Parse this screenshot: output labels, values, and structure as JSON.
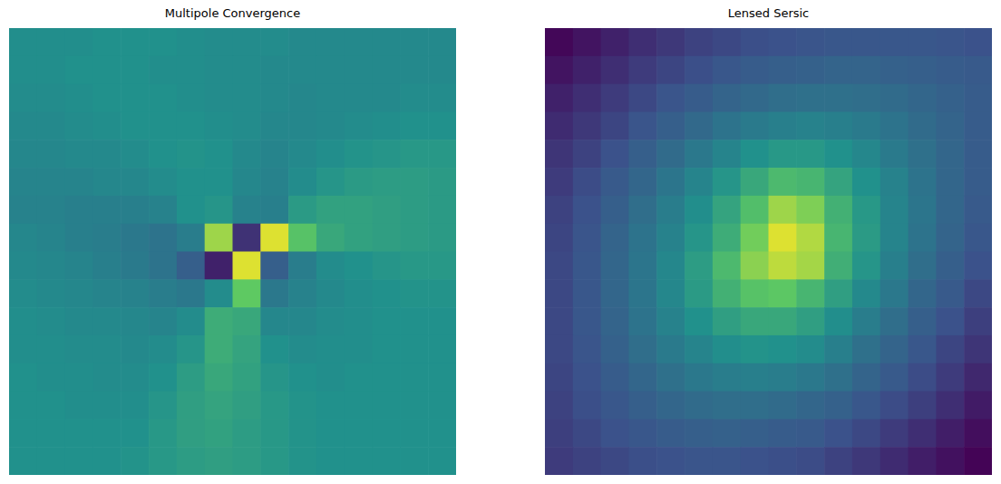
{
  "chart_data": [
    {
      "type": "heatmap",
      "title": "Multipole Convergence",
      "tick_labels": false,
      "zlim": [
        0,
        1
      ],
      "cells": [
        [
          0.49,
          0.49,
          0.49,
          0.5,
          0.5,
          0.5,
          0.49,
          0.48,
          0.48,
          0.48,
          0.47,
          0.47,
          0.47,
          0.47,
          0.47,
          0.47
        ],
        [
          0.49,
          0.49,
          0.5,
          0.5,
          0.5,
          0.49,
          0.49,
          0.48,
          0.48,
          0.47,
          0.47,
          0.47,
          0.47,
          0.47,
          0.47,
          0.47
        ],
        [
          0.48,
          0.48,
          0.49,
          0.5,
          0.5,
          0.5,
          0.49,
          0.48,
          0.48,
          0.47,
          0.46,
          0.47,
          0.47,
          0.47,
          0.48,
          0.48
        ],
        [
          0.47,
          0.47,
          0.48,
          0.49,
          0.5,
          0.5,
          0.5,
          0.49,
          0.48,
          0.46,
          0.46,
          0.47,
          0.48,
          0.49,
          0.5,
          0.5
        ],
        [
          0.46,
          0.46,
          0.47,
          0.47,
          0.48,
          0.5,
          0.51,
          0.5,
          0.47,
          0.45,
          0.47,
          0.49,
          0.51,
          0.52,
          0.53,
          0.53
        ],
        [
          0.45,
          0.45,
          0.45,
          0.46,
          0.46,
          0.48,
          0.5,
          0.5,
          0.46,
          0.44,
          0.48,
          0.52,
          0.54,
          0.55,
          0.55,
          0.54
        ],
        [
          0.44,
          0.44,
          0.43,
          0.43,
          0.43,
          0.44,
          0.5,
          0.52,
          0.44,
          0.43,
          0.54,
          0.57,
          0.57,
          0.56,
          0.55,
          0.54
        ],
        [
          0.46,
          0.45,
          0.43,
          0.42,
          0.4,
          0.38,
          0.42,
          0.85,
          0.15,
          0.95,
          0.72,
          0.6,
          0.57,
          0.56,
          0.55,
          0.54
        ],
        [
          0.47,
          0.46,
          0.45,
          0.43,
          0.41,
          0.38,
          0.3,
          0.1,
          0.95,
          0.3,
          0.42,
          0.48,
          0.5,
          0.52,
          0.53,
          0.53
        ],
        [
          0.48,
          0.47,
          0.46,
          0.45,
          0.44,
          0.42,
          0.4,
          0.48,
          0.75,
          0.4,
          0.44,
          0.47,
          0.49,
          0.5,
          0.51,
          0.51
        ],
        [
          0.49,
          0.48,
          0.47,
          0.47,
          0.46,
          0.45,
          0.48,
          0.62,
          0.6,
          0.46,
          0.46,
          0.48,
          0.49,
          0.5,
          0.5,
          0.5
        ],
        [
          0.49,
          0.49,
          0.48,
          0.48,
          0.47,
          0.48,
          0.52,
          0.62,
          0.58,
          0.5,
          0.48,
          0.49,
          0.49,
          0.5,
          0.5,
          0.5
        ],
        [
          0.5,
          0.49,
          0.49,
          0.48,
          0.48,
          0.5,
          0.55,
          0.6,
          0.57,
          0.52,
          0.5,
          0.49,
          0.5,
          0.5,
          0.5,
          0.5
        ],
        [
          0.5,
          0.5,
          0.49,
          0.49,
          0.49,
          0.52,
          0.56,
          0.58,
          0.56,
          0.53,
          0.51,
          0.5,
          0.5,
          0.5,
          0.5,
          0.5
        ],
        [
          0.5,
          0.5,
          0.5,
          0.5,
          0.5,
          0.53,
          0.56,
          0.57,
          0.55,
          0.53,
          0.51,
          0.5,
          0.5,
          0.5,
          0.5,
          0.5
        ],
        [
          0.5,
          0.5,
          0.5,
          0.5,
          0.51,
          0.53,
          0.55,
          0.56,
          0.55,
          0.53,
          0.51,
          0.5,
          0.5,
          0.5,
          0.5,
          0.5
        ]
      ]
    },
    {
      "type": "heatmap",
      "title": "Lensed Sersic",
      "tick_labels": false,
      "zlim": [
        0,
        1
      ],
      "cells": [
        [
          0.02,
          0.06,
          0.1,
          0.14,
          0.17,
          0.2,
          0.22,
          0.24,
          0.25,
          0.26,
          0.27,
          0.27,
          0.27,
          0.27,
          0.26,
          0.25
        ],
        [
          0.06,
          0.1,
          0.14,
          0.18,
          0.21,
          0.24,
          0.27,
          0.29,
          0.3,
          0.31,
          0.32,
          0.32,
          0.31,
          0.3,
          0.29,
          0.28
        ],
        [
          0.1,
          0.14,
          0.18,
          0.22,
          0.26,
          0.29,
          0.32,
          0.34,
          0.36,
          0.37,
          0.37,
          0.36,
          0.35,
          0.33,
          0.31,
          0.29
        ],
        [
          0.13,
          0.17,
          0.21,
          0.26,
          0.3,
          0.34,
          0.38,
          0.41,
          0.43,
          0.44,
          0.43,
          0.41,
          0.38,
          0.35,
          0.32,
          0.29
        ],
        [
          0.16,
          0.2,
          0.25,
          0.3,
          0.35,
          0.4,
          0.45,
          0.5,
          0.53,
          0.53,
          0.5,
          0.46,
          0.41,
          0.37,
          0.33,
          0.29
        ],
        [
          0.18,
          0.23,
          0.28,
          0.33,
          0.39,
          0.45,
          0.52,
          0.6,
          0.68,
          0.66,
          0.58,
          0.5,
          0.44,
          0.38,
          0.33,
          0.29
        ],
        [
          0.2,
          0.25,
          0.3,
          0.36,
          0.42,
          0.49,
          0.58,
          0.7,
          0.85,
          0.8,
          0.64,
          0.53,
          0.45,
          0.39,
          0.33,
          0.28
        ],
        [
          0.21,
          0.26,
          0.32,
          0.38,
          0.44,
          0.52,
          0.62,
          0.78,
          0.95,
          0.88,
          0.66,
          0.54,
          0.45,
          0.38,
          0.32,
          0.27
        ],
        [
          0.22,
          0.27,
          0.33,
          0.39,
          0.46,
          0.55,
          0.68,
          0.82,
          0.9,
          0.86,
          0.63,
          0.52,
          0.43,
          0.36,
          0.3,
          0.25
        ],
        [
          0.22,
          0.27,
          0.33,
          0.39,
          0.46,
          0.54,
          0.64,
          0.72,
          0.74,
          0.66,
          0.56,
          0.47,
          0.4,
          0.33,
          0.28,
          0.22
        ],
        [
          0.22,
          0.27,
          0.32,
          0.38,
          0.44,
          0.5,
          0.56,
          0.6,
          0.6,
          0.56,
          0.49,
          0.42,
          0.36,
          0.3,
          0.25,
          0.19
        ],
        [
          0.22,
          0.26,
          0.31,
          0.36,
          0.41,
          0.45,
          0.49,
          0.51,
          0.5,
          0.48,
          0.43,
          0.37,
          0.32,
          0.27,
          0.21,
          0.16
        ],
        [
          0.21,
          0.25,
          0.29,
          0.33,
          0.37,
          0.4,
          0.42,
          0.43,
          0.42,
          0.4,
          0.37,
          0.32,
          0.28,
          0.23,
          0.18,
          0.12
        ],
        [
          0.2,
          0.24,
          0.27,
          0.3,
          0.33,
          0.35,
          0.36,
          0.36,
          0.35,
          0.33,
          0.31,
          0.27,
          0.23,
          0.19,
          0.14,
          0.08
        ],
        [
          0.19,
          0.22,
          0.25,
          0.27,
          0.29,
          0.3,
          0.31,
          0.3,
          0.29,
          0.28,
          0.25,
          0.22,
          0.18,
          0.14,
          0.09,
          0.04
        ],
        [
          0.18,
          0.2,
          0.22,
          0.24,
          0.25,
          0.26,
          0.26,
          0.25,
          0.24,
          0.23,
          0.2,
          0.17,
          0.13,
          0.09,
          0.05,
          0.01
        ]
      ]
    }
  ]
}
